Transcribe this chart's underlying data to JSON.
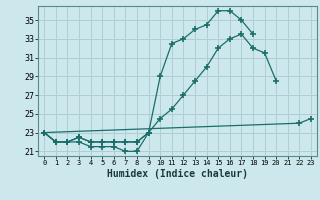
{
  "title": "",
  "xlabel": "Humidex (Indice chaleur)",
  "bg_color": "#cce8ec",
  "grid_color": "#b0cdd4",
  "line_color": "#1a6e6a",
  "xlim": [
    -0.5,
    23.5
  ],
  "ylim": [
    20.5,
    36.5
  ],
  "xticks": [
    0,
    1,
    2,
    3,
    4,
    5,
    6,
    7,
    8,
    9,
    10,
    11,
    12,
    13,
    14,
    15,
    16,
    17,
    18,
    19,
    20,
    21,
    22,
    23
  ],
  "yticks": [
    21,
    23,
    25,
    27,
    29,
    31,
    33,
    35
  ],
  "series": [
    {
      "x": [
        0,
        1,
        2,
        3,
        4,
        5,
        6,
        7,
        8,
        9
      ],
      "y": [
        23,
        22,
        22,
        22,
        21.5,
        21.5,
        21.5,
        21,
        21,
        23
      ]
    },
    {
      "x": [
        0,
        1,
        2,
        3,
        4,
        5,
        6,
        7,
        8,
        9,
        10,
        11,
        12,
        13,
        14,
        15,
        16,
        17,
        18,
        19,
        20
      ],
      "y": [
        23,
        22,
        22,
        22.5,
        22,
        22,
        22,
        22,
        22,
        23,
        24.5,
        25.5,
        27,
        28.5,
        30,
        32,
        33,
        33.5,
        32,
        31.5,
        28.5
      ]
    },
    {
      "x": [
        0,
        1,
        2,
        3,
        4,
        5,
        6,
        7,
        8,
        9,
        10,
        11,
        12,
        13,
        14,
        15,
        16,
        17,
        18
      ],
      "y": [
        23,
        22,
        22,
        22.5,
        22,
        22,
        22,
        22,
        22,
        23,
        29,
        32.5,
        33,
        34,
        34.5,
        36,
        36,
        35,
        33.5
      ]
    },
    {
      "x": [
        0,
        22,
        23
      ],
      "y": [
        23,
        24,
        24.5
      ]
    }
  ]
}
